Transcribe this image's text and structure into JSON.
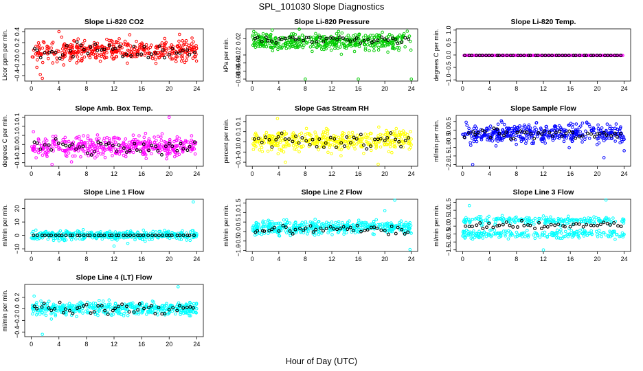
{
  "figure": {
    "title": "SPL_101030  Slope Diagnostics",
    "xlabel": "Hour of Day (UTC)"
  },
  "chart_data": [
    {
      "type": "scatter",
      "title": "Slope Li-820 CO2",
      "ylabel": "Licor ppm per min.",
      "xlim": [
        0,
        24
      ],
      "ylim": [
        -0.5,
        0.45
      ],
      "yticks": [
        -0.4,
        -0.2,
        0.0,
        0.2,
        0.4
      ],
      "xticks": [
        0,
        4,
        8,
        12,
        16,
        20,
        24
      ],
      "color": "#ff0000",
      "center": 0.05,
      "spread": 0.14,
      "outliers": [
        [
          4.0,
          0.4
        ],
        [
          4.4,
          0.3
        ],
        [
          1.3,
          -0.38
        ],
        [
          1.6,
          -0.45
        ],
        [
          0.8,
          -0.25
        ],
        [
          21.5,
          0.35
        ]
      ],
      "black_center": 0.05,
      "black_spread": 0.09,
      "seed": 11
    },
    {
      "type": "scatter",
      "title": "Slope Li-820 Pressure",
      "ylabel": "kPa per min.",
      "xlim": [
        0,
        24
      ],
      "ylim": [
        -0.085,
        0.045
      ],
      "yticks": [
        -0.08,
        -0.06,
        -0.04,
        -0.02,
        0.02
      ],
      "xticks": [
        0,
        4,
        8,
        12,
        16,
        20,
        24
      ],
      "color": "#00cc00",
      "center": 0.013,
      "spread": 0.015,
      "outliers": [
        [
          8.0,
          -0.08
        ],
        [
          16.0,
          -0.08
        ],
        [
          24.0,
          -0.08
        ]
      ],
      "black_center": 0.018,
      "black_spread": 0.006,
      "seed": 23
    },
    {
      "type": "scatter",
      "title": "Slope Li-820 Temp.",
      "ylabel": "degrees C per min.",
      "xlim": [
        0,
        24
      ],
      "ylim": [
        -1.05,
        1.05
      ],
      "yticks": [
        -1.0,
        -0.5,
        0.0,
        0.5,
        1.0
      ],
      "xticks": [
        0,
        4,
        8,
        12,
        16,
        20,
        24
      ],
      "color": "#ff00ff",
      "center": -0.02,
      "spread": 0.0,
      "outliers": [],
      "black_center": -0.02,
      "black_spread": 0.0,
      "seed": 5,
      "line_mode": true
    },
    {
      "type": "scatter",
      "title": "Slope Amb. Box Temp.",
      "ylabel": "degrees C per min.",
      "xlim": [
        0,
        24
      ],
      "ylim": [
        -0.12,
        0.16
      ],
      "yticks": [
        -0.1,
        -0.05,
        0.0,
        0.05,
        0.1,
        0.15
      ],
      "xticks": [
        0,
        4,
        8,
        12,
        16,
        20,
        24
      ],
      "color": "#ff00ff",
      "center": -0.01,
      "spread": 0.04,
      "outliers": [
        [
          20.0,
          0.15
        ],
        [
          0.3,
          0.07
        ],
        [
          3.0,
          -0.11
        ]
      ],
      "black_center": -0.01,
      "black_spread": 0.03,
      "seed": 37
    },
    {
      "type": "scatter",
      "title": "Slope Gas Stream RH",
      "ylabel": "percent per min.",
      "xlim": [
        0,
        24
      ],
      "ylim": [
        -0.12,
        0.13
      ],
      "yticks": [
        -0.1,
        -0.05,
        0.0,
        0.05,
        0.1
      ],
      "xticks": [
        0,
        4,
        8,
        12,
        16,
        20,
        24
      ],
      "color": "#ffff00",
      "center": 0.005,
      "spread": 0.035,
      "outliers": [
        [
          3.8,
          0.115
        ],
        [
          5.0,
          -0.1
        ],
        [
          19.0,
          -0.11
        ]
      ],
      "black_center": 0.005,
      "black_spread": 0.025,
      "seed": 41
    },
    {
      "type": "scatter",
      "title": "Slope Sample Flow",
      "ylabel": "ml/min per min.",
      "xlim": [
        0,
        24
      ],
      "ylim": [
        -2.1,
        0.85
      ],
      "yticks": [
        -2.0,
        -1.5,
        -1.0,
        -0.5,
        0.0,
        0.5
      ],
      "xticks": [
        0,
        4,
        8,
        12,
        16,
        20,
        24
      ],
      "color": "#0000ff",
      "center": -0.2,
      "spread": 0.4,
      "outliers": [
        [
          1.5,
          -2.0
        ],
        [
          21.0,
          -1.6
        ],
        [
          24.0,
          -1.2
        ]
      ],
      "black_center": -0.2,
      "black_spread": 0.25,
      "seed": 53
    },
    {
      "type": "scatter",
      "title": "Slope Line 1 Flow",
      "ylabel": "ml/min per min.",
      "xlim": [
        0,
        24
      ],
      "ylim": [
        -12,
        27
      ],
      "yticks": [
        -10,
        0,
        10,
        20
      ],
      "xticks": [
        0,
        4,
        8,
        12,
        16,
        20,
        24
      ],
      "color": "#00ffff",
      "center": 0.0,
      "spread": 2.3,
      "outliers": [
        [
          23.5,
          25.0
        ],
        [
          12.0,
          -8.0
        ],
        [
          14.0,
          -6.0
        ]
      ],
      "black_center": 0.0,
      "black_spread": 0.0,
      "seed": 61,
      "black_line": true
    },
    {
      "type": "scatter",
      "title": "Slope Line 2 Flow",
      "ylabel": "ml/min per min.",
      "xlim": [
        0,
        24
      ],
      "ylim": [
        -1.05,
        1.7
      ],
      "yticks": [
        -1.0,
        -0.5,
        0.0,
        0.5,
        1.0,
        1.5
      ],
      "xticks": [
        0,
        4,
        8,
        12,
        16,
        20,
        24
      ],
      "color": "#00ffff",
      "center": 0.2,
      "spread": 0.25,
      "outliers": [
        [
          21.5,
          1.65
        ],
        [
          23.8,
          -0.95
        ],
        [
          20.0,
          1.1
        ]
      ],
      "black_center": 0.1,
      "black_spread": 0.15,
      "seed": 71
    },
    {
      "type": "scatter",
      "title": "Slope Line 3 Flow",
      "ylabel": "ml/min per min.",
      "xlim": [
        0,
        24
      ],
      "ylim": [
        -1.6,
        1.7
      ],
      "yticks": [
        -1.5,
        -1.0,
        -0.5,
        0.0,
        0.5,
        1.0,
        1.5
      ],
      "xticks": [
        0,
        4,
        8,
        12,
        16,
        20,
        24
      ],
      "color": "#00ffff",
      "center": 0.0,
      "spread": 0.55,
      "outliers": [
        [
          21.3,
          1.65
        ],
        [
          12.0,
          -1.5
        ],
        [
          1.0,
          1.3
        ]
      ],
      "black_center": 0.05,
      "black_spread": 0.15,
      "seed": 83,
      "bimodal": true
    },
    {
      "type": "scatter",
      "title": "Slope Line 4 (LT) Flow",
      "ylabel": "ml/min per min.",
      "xlim": [
        0,
        24
      ],
      "ylim": [
        -0.48,
        0.42
      ],
      "yticks": [
        -0.4,
        -0.2,
        0.0,
        0.2
      ],
      "xticks": [
        0,
        4,
        8,
        12,
        16,
        20,
        24
      ],
      "color": "#00ffff",
      "center": 0.0,
      "spread": 0.08,
      "outliers": [
        [
          1.6,
          -0.44
        ],
        [
          21.3,
          0.38
        ],
        [
          0.4,
          0.22
        ]
      ],
      "black_center": 0.0,
      "black_spread": 0.07,
      "seed": 97
    }
  ]
}
